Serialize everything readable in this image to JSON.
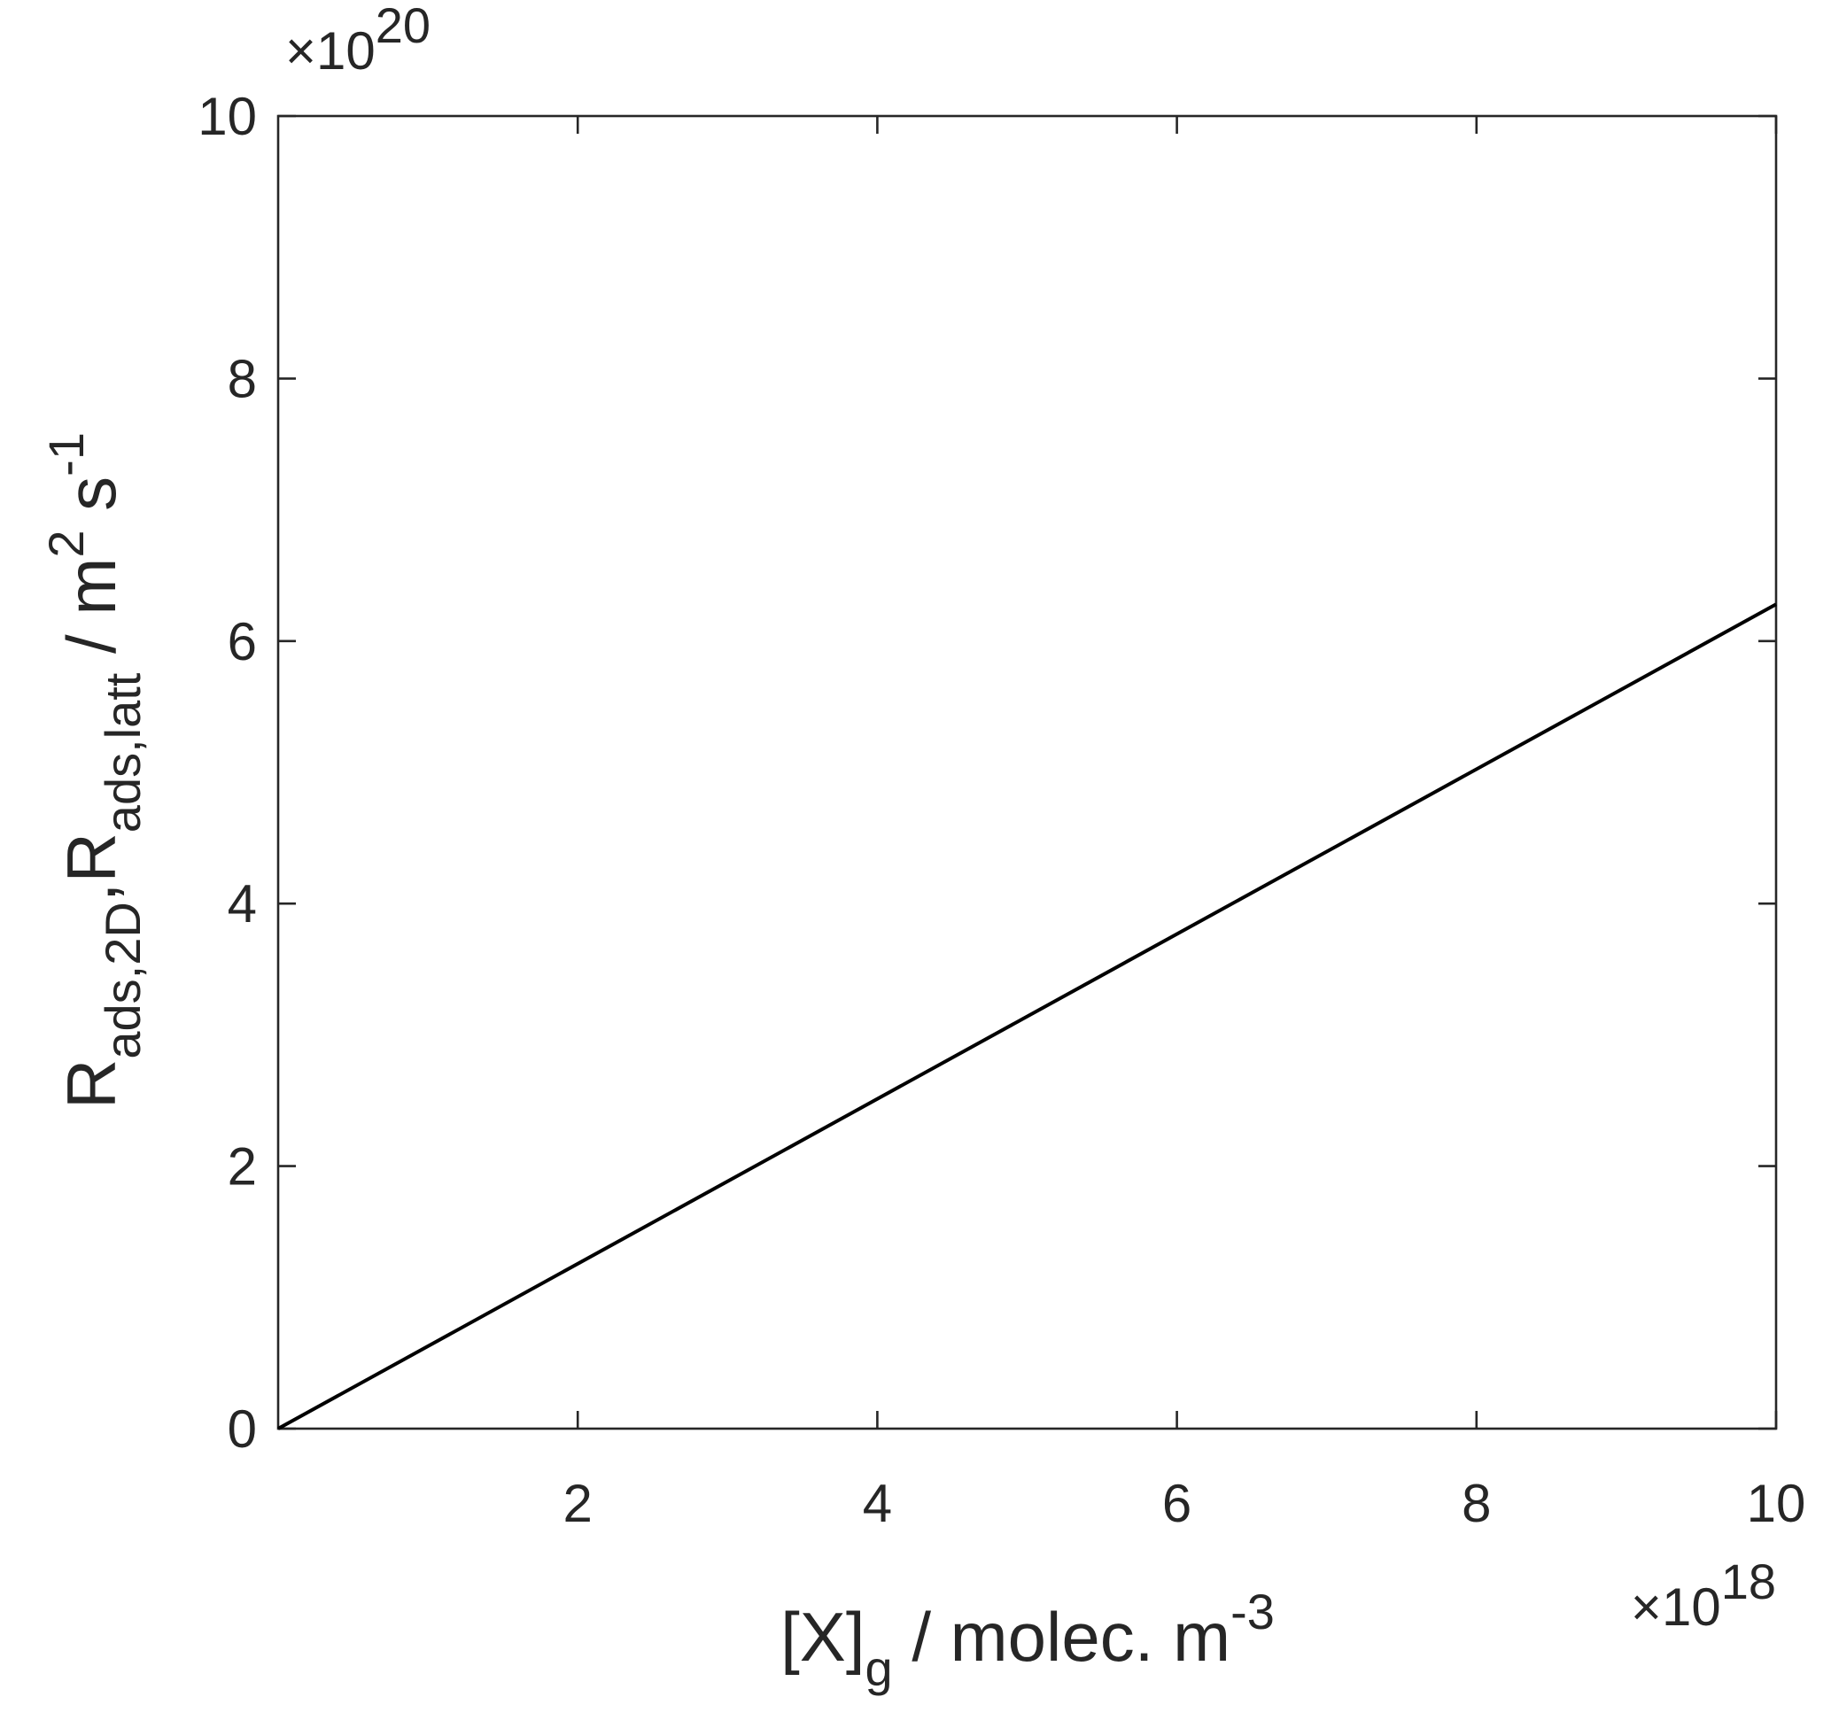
{
  "chart_data": {
    "type": "line",
    "x": [
      0,
      10
    ],
    "series": [
      {
        "color": "#000000",
        "values": [
          0,
          6.28
        ]
      }
    ],
    "xlim": [
      0,
      10
    ],
    "xticks": [
      2,
      4,
      6,
      8,
      10
    ],
    "ylim": [
      0,
      10
    ],
    "yticks": [
      0,
      2,
      4,
      6,
      8,
      10
    ],
    "x_multiplier": {
      "base": "×10",
      "exponent": "18"
    },
    "y_multiplier": {
      "base": "×10",
      "exponent": "20"
    },
    "xlabel": {
      "parts": [
        "[X]",
        "g",
        " / molec. m",
        "-3"
      ]
    },
    "ylabel": {
      "parts": [
        "R",
        "ads,2D",
        ",R",
        "ads,latt",
        " / m",
        "2",
        " s",
        "-1"
      ]
    },
    "grid": false
  }
}
